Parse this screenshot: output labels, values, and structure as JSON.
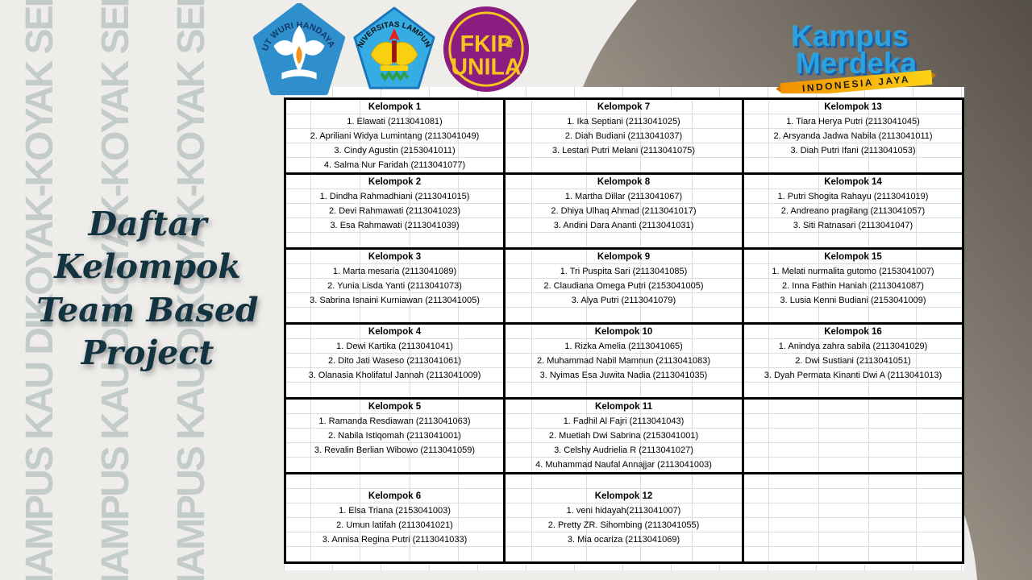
{
  "page": {
    "title_line1": "Daftar Kelompok",
    "title_line2": "Team Based Project",
    "watermark_text": "MAMPUS KAU DIKOYAK-KOYAK SEPI",
    "colors": {
      "background": "#efedea",
      "watermark": "#c4cccb",
      "title": "#12333f",
      "gridline": "#dcdcdc",
      "thick_border": "#000000",
      "gradient_dark": "#544e47",
      "gradient_mid": "#978f84",
      "gradient_light": "#cfc9be"
    }
  },
  "logos": {
    "kemdikbud": {
      "arc_text": "TUT WURI HANDAYANI",
      "base_color": "#2f8fcc",
      "flame_color": "#f6921e"
    },
    "unila": {
      "arc_text": "UNIVERSITAS LAMPUNG",
      "base_color": "#35ace3",
      "emblem_color": "#f9d00f",
      "flame_color": "#e8211d"
    },
    "fkip": {
      "line1": "FKIP",
      "line2": "UNILA",
      "crown_icon": "crown",
      "base_color": "#8b1c80",
      "text_color": "#f7c51e"
    },
    "kampus_merdeka": {
      "line1": "Kampus",
      "line2": "Merdeka",
      "ribbon": "INDONESIA JAYA",
      "blue_light": "#2ba3e0",
      "blue_dark": "#1a5ea8",
      "ribbon_color": "#f9b021"
    }
  },
  "groups": [
    {
      "name": "Kelompok 1",
      "members": [
        "1. Elawati (2113041081)",
        "2. Apriliani Widya Lumintang (2113041049)",
        "3. Cindy Agustin (2153041011)",
        "4. Salma Nur Faridah (2113041077)"
      ]
    },
    {
      "name": "Kelompok 2",
      "members": [
        "1. Dindha Rahmadhiani (2113041015)",
        "2. Devi Rahmawati (2113041023)",
        "3. Esa Rahmawati (2113041039)"
      ]
    },
    {
      "name": "Kelompok 3",
      "members": [
        "1. Marta mesaria (2113041089)",
        "2. Yunia Lisda Yanti (2113041073)",
        "3. Sabrina Isnaini Kurniawan (2113041005)"
      ]
    },
    {
      "name": "Kelompok 4",
      "members": [
        "1. Dewi Kartika (2113041041)",
        "2. Dito Jati Waseso (2113041061)",
        "3. Olanasia Kholifatul Jannah (2113041009)"
      ]
    },
    {
      "name": "Kelompok 5",
      "members": [
        "1. Ramanda Resdiawan (2113041063)",
        "2. Nabila Istiqomah (2113041001)",
        "3. Revalin Berlian Wibowo (2113041059)"
      ]
    },
    {
      "name": "Kelompok 6",
      "members": [
        "1. Elsa Triana (2153041003)",
        "2. Umun latifah (2113041021)",
        "3. Annisa Regina Putri (2113041033)"
      ]
    },
    {
      "name": "Kelompok 7",
      "members": [
        "1. Ika Septiani (2113041025)",
        "2. Diah Budiani (2113041037)",
        "3. Lestari Putri Melani (2113041075)"
      ]
    },
    {
      "name": "Kelompok 8",
      "members": [
        "1. Martha Dillar (2113041067)",
        "2. Dhiya Ulhaq Ahmad (2113041017)",
        "3. Andini Dara Ananti (2113041031)"
      ]
    },
    {
      "name": "Kelompok 9",
      "members": [
        "1. Tri Puspita Sari (2113041085)",
        "2. Claudiana Omega Putri (2153041005)",
        "3. Alya Putri (2113041079)"
      ]
    },
    {
      "name": "Kelompok 10",
      "members": [
        "1. Rizka Amelia (2113041065)",
        "2. Muhammad Nabil Mamnun (2113041083)",
        "3. Nyimas Esa Juwita Nadia (2113041035)"
      ]
    },
    {
      "name": "Kelompok 11",
      "members": [
        "1. Fadhil Al Fajri (2113041043)",
        "2. Muetiah Dwi Sabrina (2153041001)",
        "3. Celshy Audrielia R (2113041027)",
        "4. Muhammad Naufal Annajjar (2113041003)"
      ]
    },
    {
      "name": "Kelompok 12",
      "members": [
        "1. veni hidayah(2113041007)",
        "2. Pretty ZR. Sihombing (2113041055)",
        "3. Mia ocariza (2113041069)"
      ]
    },
    {
      "name": "Kelompok 13",
      "members": [
        "1. Tiara Herya Putri (2113041045)",
        "2. Arsyanda Jadwa Nabila (2113041011)",
        "3. Diah Putri Ifani (2113041053)"
      ]
    },
    {
      "name": "Kelompok 14",
      "members": [
        "1. Putri Shogita Rahayu (2113041019)",
        "2. Andreano pragilang (2113041057)",
        "3. Siti Ratnasari (2113041047)"
      ]
    },
    {
      "name": "Kelompok 15",
      "members": [
        "1. Melati nurmalita gutomo (2153041007)",
        "2. Inna Fathin Haniah (2113041087)",
        "3. Lusia Kenni Budiani (2153041009)"
      ]
    },
    {
      "name": "Kelompok 16",
      "members": [
        "1. Anindya zahra sabila (2113041029)",
        "2. Dwi Sustiani (2113041051)",
        "3. Dyah Permata Kinanti Dwi A (2113041013)"
      ]
    }
  ],
  "table": {
    "columns": [
      {
        "blocks": [
          {
            "g": 0
          },
          {
            "g": 1,
            "after": 1
          },
          {
            "g": 2,
            "after": 1
          },
          {
            "g": 3,
            "after": 1
          },
          {
            "g": 4,
            "after": 1
          },
          {
            "g": 5,
            "before": 1,
            "after": 1
          }
        ]
      },
      {
        "blocks": [
          {
            "g": 6,
            "after": 1
          },
          {
            "g": 7,
            "after": 1
          },
          {
            "g": 8,
            "after": 1
          },
          {
            "g": 9,
            "after": 1
          },
          {
            "g": 10
          },
          {
            "g": 11,
            "before": 1,
            "after": 1
          }
        ]
      },
      {
        "blocks": [
          {
            "g": 12,
            "after": 1
          },
          {
            "g": 13,
            "after": 1
          },
          {
            "g": 14,
            "after": 1
          },
          {
            "g": 15,
            "after": 1
          },
          {
            "empty": 5
          },
          {
            "empty": 6
          }
        ]
      }
    ]
  }
}
